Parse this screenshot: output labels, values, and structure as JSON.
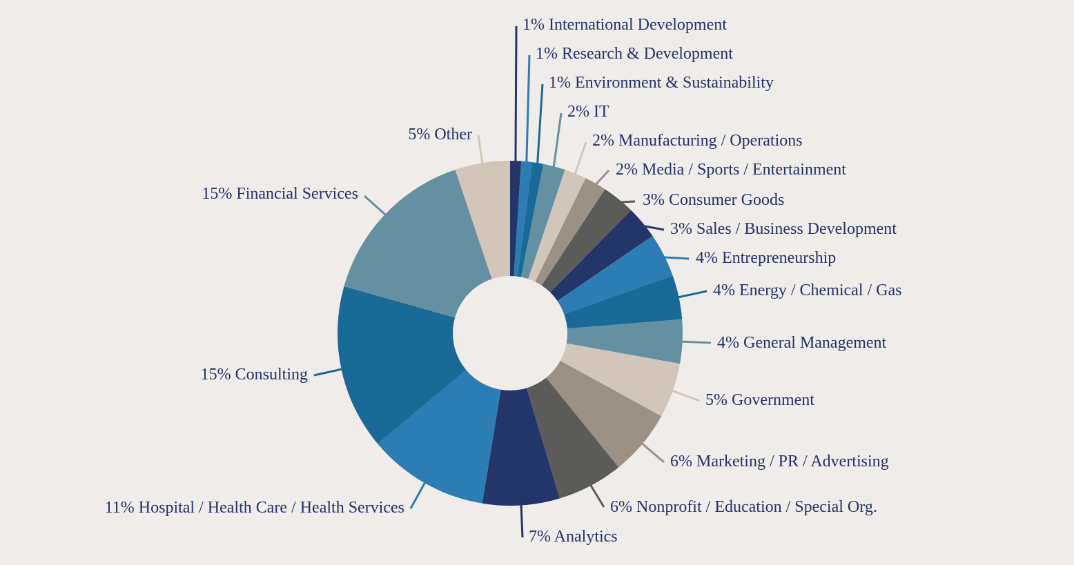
{
  "chart_data": {
    "type": "pie",
    "variant": "donut",
    "title": "",
    "legend": "none",
    "unit": "%",
    "slices": [
      {
        "label": "International Development",
        "value": 1,
        "color": "#233569"
      },
      {
        "label": "Research & Development",
        "value": 1,
        "color": "#2b7db3"
      },
      {
        "label": "Environment & Sustainability",
        "value": 1,
        "color": "#1a6a97"
      },
      {
        "label": "IT",
        "value": 2,
        "color": "#6391a2"
      },
      {
        "label": "Manufacturing / Operations",
        "value": 2,
        "color": "#d2c5b9"
      },
      {
        "label": "Media / Sports / Entertainment",
        "value": 2,
        "color": "#9b9185"
      },
      {
        "label": "Consumer Goods",
        "value": 3,
        "color": "#5b5b59"
      },
      {
        "label": "Sales / Business Development",
        "value": 3,
        "color": "#233569"
      },
      {
        "label": "Entrepreneurship",
        "value": 4,
        "color": "#2b7db3"
      },
      {
        "label": "Energy / Chemical / Gas",
        "value": 4,
        "color": "#1a6a97"
      },
      {
        "label": "General Management",
        "value": 4,
        "color": "#6391a2"
      },
      {
        "label": "Government",
        "value": 5,
        "color": "#d2c5b9"
      },
      {
        "label": "Marketing / PR / Advertising",
        "value": 6,
        "color": "#9b9185"
      },
      {
        "label": "Nonprofit / Education / Special Org.",
        "value": 6,
        "color": "#5b5b59"
      },
      {
        "label": "Analytics",
        "value": 7,
        "color": "#233569"
      },
      {
        "label": "Hospital / Health Care / Health Services",
        "value": 11,
        "color": "#2b7db3"
      },
      {
        "label": "Consulting",
        "value": 15,
        "color": "#1a6a97"
      },
      {
        "label": "Financial Services",
        "value": 15,
        "color": "#6391a2"
      },
      {
        "label": "Other",
        "value": 5,
        "color": "#d2c5b9"
      }
    ],
    "label_color": "#22336a",
    "background": "#f0ece9"
  }
}
